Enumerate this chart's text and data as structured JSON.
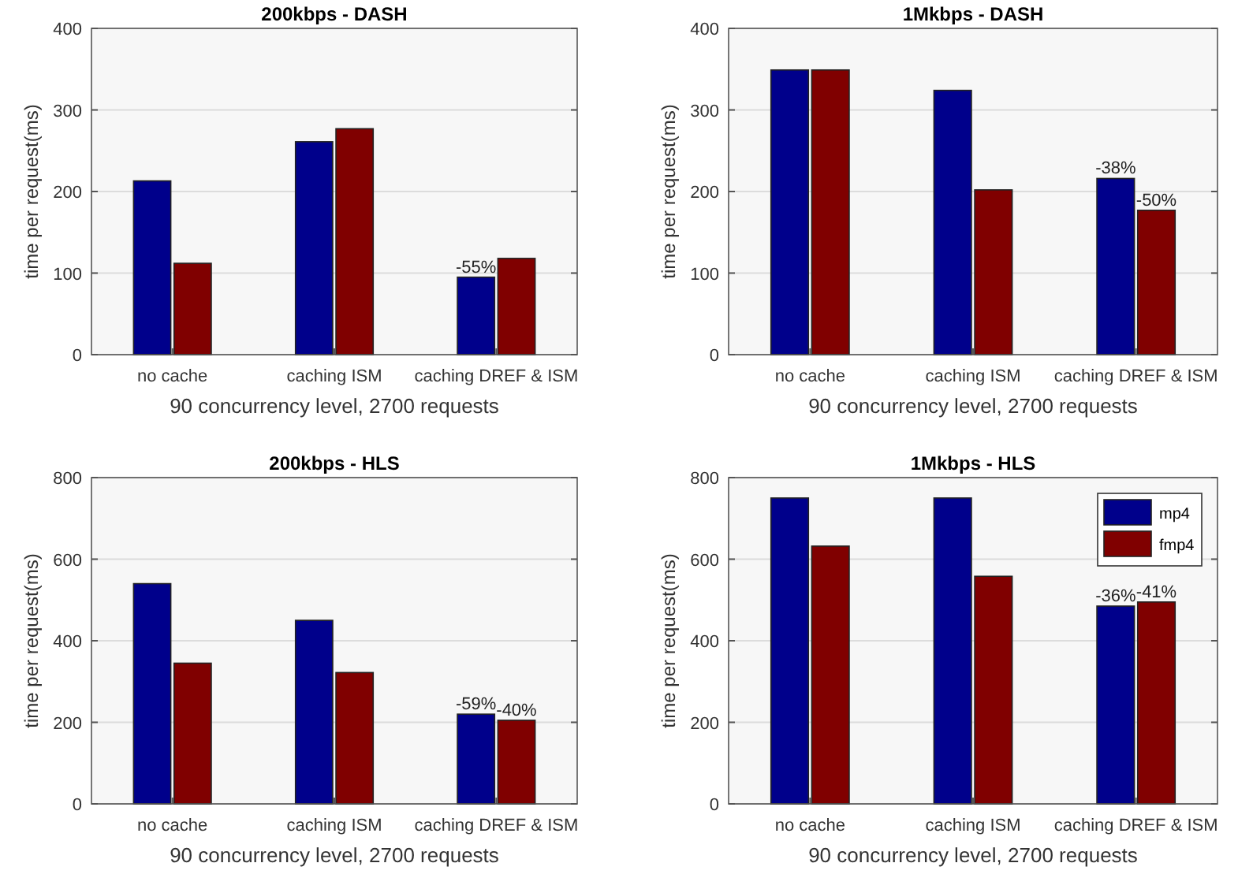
{
  "chart_data": [
    {
      "type": "bar",
      "title": "200kbps - DASH",
      "xlabel": "90 concurrency level, 2700 requests",
      "ylabel": "time per request(ms)",
      "categories": [
        "no cache",
        "caching ISM",
        "caching DREF & ISM"
      ],
      "ylim": [
        0,
        400
      ],
      "yticks": [
        0,
        100,
        200,
        300,
        400
      ],
      "grid": "y",
      "series": [
        {
          "color": "#00008b",
          "values": [
            213,
            261,
            95
          ]
        },
        {
          "color": "#800000",
          "values": [
            112,
            277,
            118
          ]
        }
      ],
      "annotations": [
        {
          "text": "-55%",
          "x": "caching DREF & ISM",
          "y": 95
        }
      ]
    },
    {
      "type": "bar",
      "title": "1Mkbps - DASH",
      "xlabel": "90 concurrency level, 2700 requests",
      "ylabel": "time per request(ms)",
      "categories": [
        "no cache",
        "caching ISM",
        "caching DREF & ISM"
      ],
      "ylim": [
        0,
        400
      ],
      "yticks": [
        0,
        100,
        200,
        300,
        400
      ],
      "grid": "y",
      "series": [
        {
          "color": "#00008b",
          "values": [
            349,
            324,
            216
          ]
        },
        {
          "color": "#800000",
          "values": [
            349,
            202,
            177
          ]
        }
      ],
      "annotations": [
        {
          "text": "-38%",
          "x": "caching DREF & ISM",
          "y": 216
        },
        {
          "text": "-50%",
          "x": "caching DREF & ISM",
          "y": 177
        }
      ]
    },
    {
      "type": "bar",
      "title": "200kbps - HLS",
      "xlabel": "90 concurrency level, 2700 requests",
      "ylabel": "time per request(ms)",
      "categories": [
        "no cache",
        "caching ISM",
        "caching DREF & ISM"
      ],
      "ylim": [
        0,
        800
      ],
      "yticks": [
        0,
        200,
        400,
        600,
        800
      ],
      "grid": "y",
      "series": [
        {
          "color": "#00008b",
          "values": [
            540,
            450,
            220
          ]
        },
        {
          "color": "#800000",
          "values": [
            345,
            322,
            205
          ]
        }
      ],
      "annotations": [
        {
          "text": "-59%",
          "x": "caching DREF & ISM",
          "y": 220
        },
        {
          "text": "-40%",
          "x": "caching DREF & ISM",
          "y": 205
        }
      ]
    },
    {
      "type": "bar",
      "title": "1Mkbps - HLS",
      "xlabel": "90 concurrency level, 2700 requests",
      "ylabel": "time per request(ms)",
      "categories": [
        "no cache",
        "caching ISM",
        "caching DREF & ISM"
      ],
      "ylim": [
        0,
        800
      ],
      "yticks": [
        0,
        200,
        400,
        600,
        800
      ],
      "grid": "y",
      "legend": "top right",
      "series": [
        {
          "name": "mp4",
          "color": "#00008b",
          "values": [
            750,
            750,
            485
          ]
        },
        {
          "name": "fmp4",
          "color": "#800000",
          "values": [
            632,
            558,
            495
          ]
        }
      ],
      "annotations": [
        {
          "text": "-36%",
          "x": "caching DREF & ISM",
          "y": 485
        },
        {
          "text": "-41%",
          "x": "caching DREF & ISM",
          "y": 495
        }
      ]
    }
  ]
}
